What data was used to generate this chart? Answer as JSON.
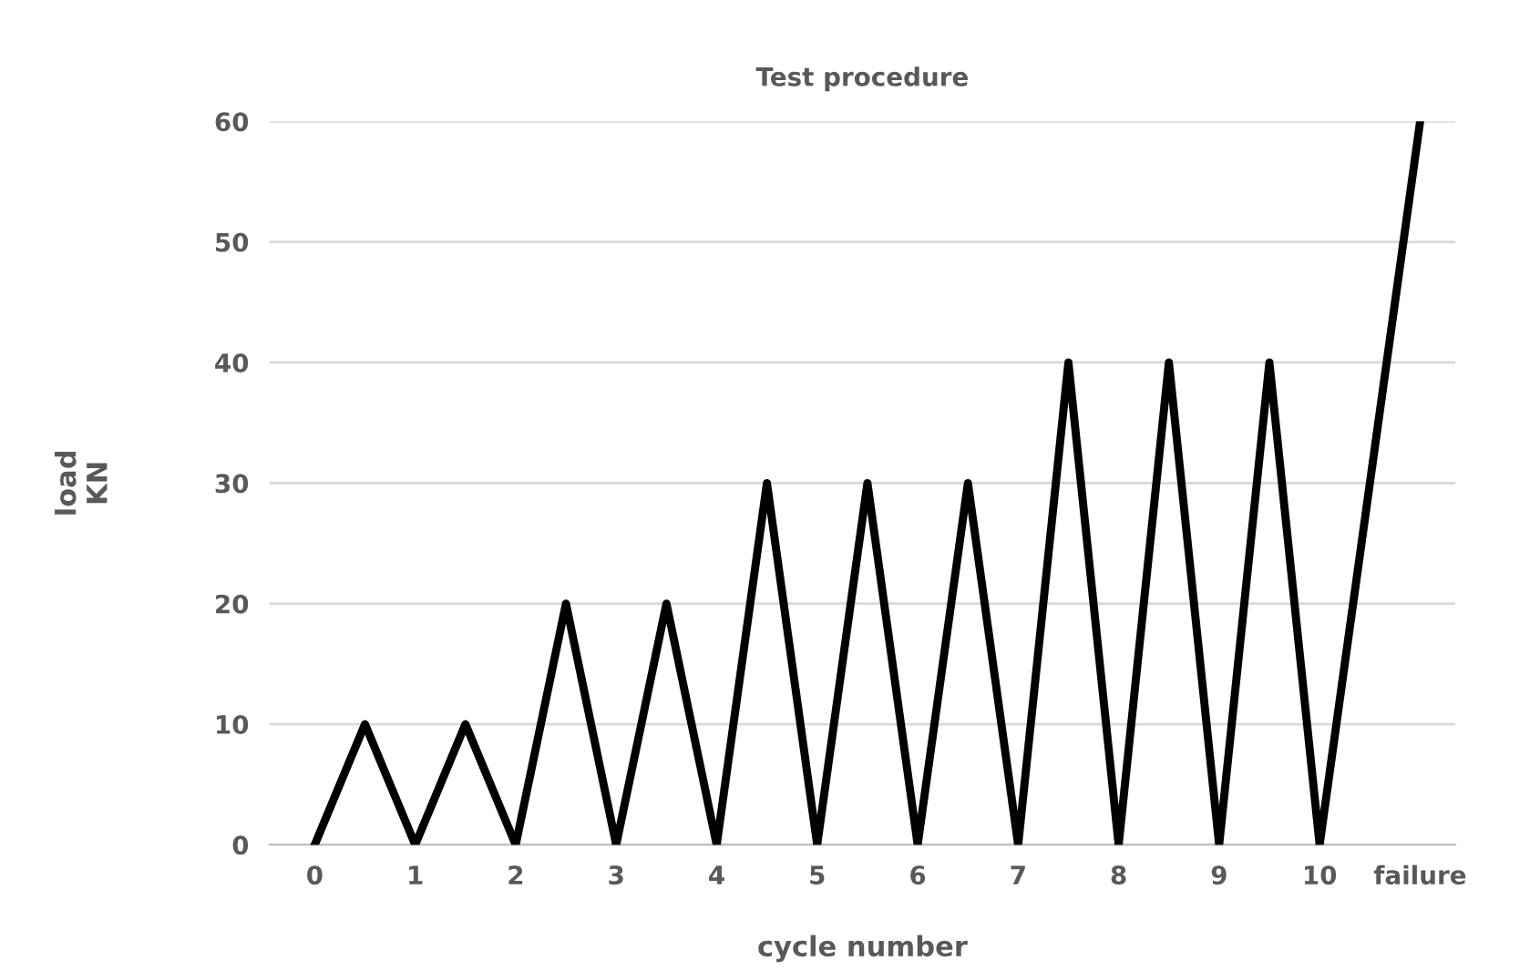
{
  "chart_data": {
    "type": "line",
    "title": "Test procedure",
    "xlabel": "cycle number",
    "ylabel": "load\nKN",
    "series": [
      {
        "color": "#000000",
        "x": [
          0,
          0.5,
          1,
          1.5,
          2,
          2.5,
          3,
          3.5,
          4,
          4.5,
          5,
          5.5,
          6,
          6.5,
          7,
          7.5,
          8,
          8.5,
          9,
          9.5,
          10,
          11
        ],
        "values": [
          0,
          10,
          0,
          10,
          0,
          20,
          0,
          20,
          0,
          30,
          0,
          30,
          0,
          30,
          0,
          40,
          0,
          40,
          0,
          40,
          0,
          60
        ]
      }
    ],
    "xlim": [
      -0.45,
      11.35
    ],
    "xticks": [
      0,
      1,
      2,
      3,
      4,
      5,
      6,
      7,
      8,
      9,
      10,
      {
        "value": 11,
        "label": "failure"
      }
    ],
    "ylim": [
      0,
      60
    ],
    "yticks": [
      0,
      10,
      20,
      30,
      40,
      50,
      60
    ],
    "grid": "y",
    "marker": "none",
    "line_style": "solid"
  }
}
